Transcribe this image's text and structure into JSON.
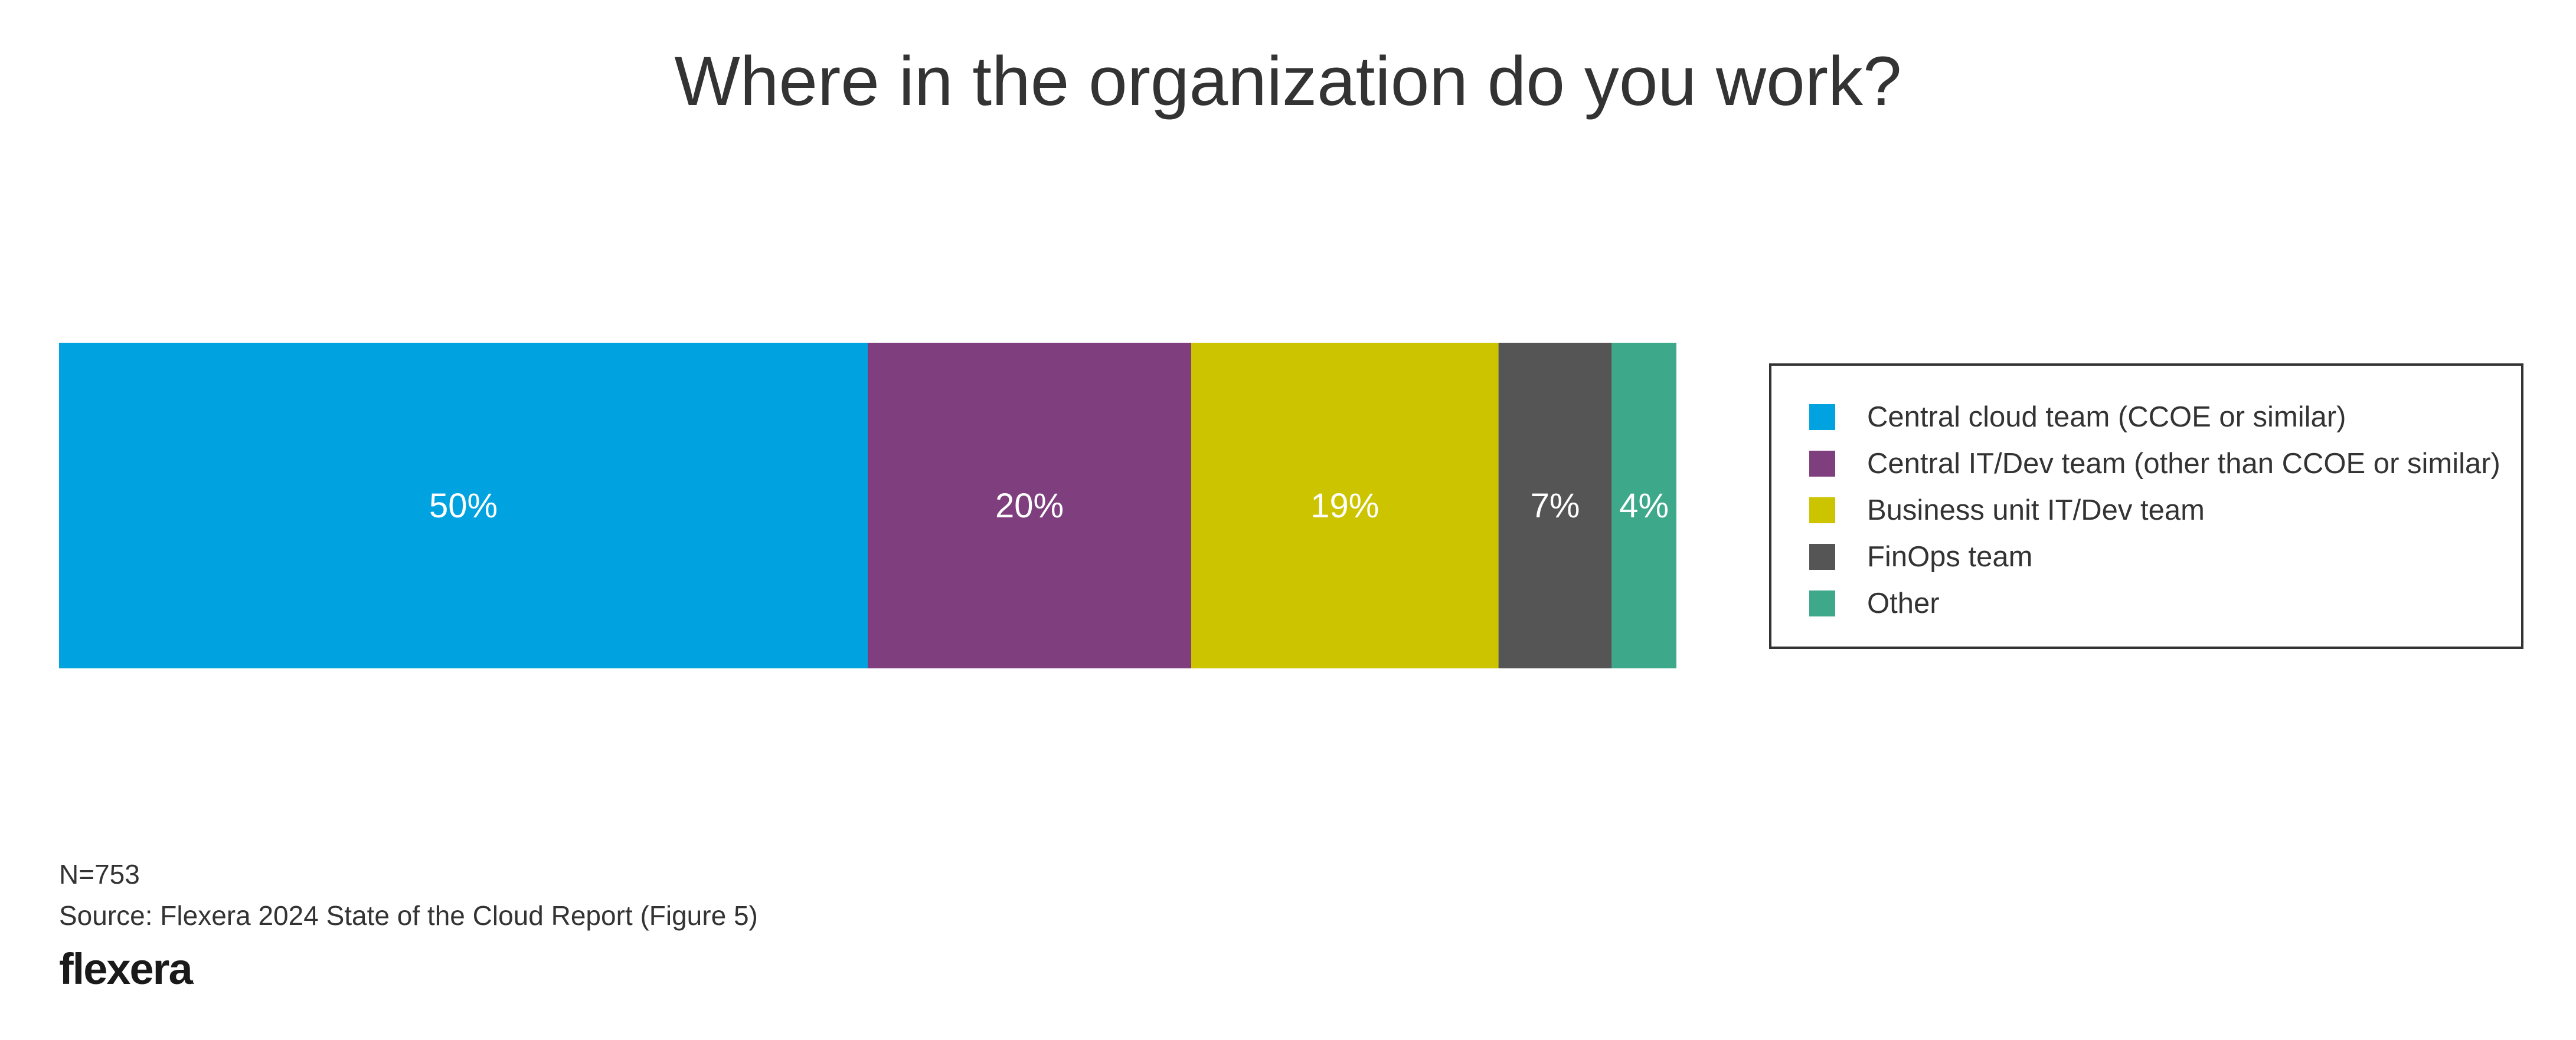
{
  "chart_data": {
    "type": "bar",
    "orientation": "horizontal-stacked-100",
    "title": "Where in the organization do you work?",
    "series": [
      {
        "name": "Central cloud team (CCOE or similar)",
        "value": 50,
        "label": "50%",
        "color": "#00A3E0"
      },
      {
        "name": "Central IT/Dev team (other than CCOE or similar)",
        "value": 20,
        "label": "20%",
        "color": "#7F3F7F"
      },
      {
        "name": "Business unit IT/Dev team",
        "value": 19,
        "label": "19%",
        "color": "#CDC400"
      },
      {
        "name": "FinOps team",
        "value": 7,
        "label": "7%",
        "color": "#555555"
      },
      {
        "name": "Other",
        "value": 4,
        "label": "4%",
        "color": "#3DA88A"
      }
    ],
    "legend_position": "right",
    "grid": false
  },
  "footnotes": {
    "n": "N=753",
    "source": "Source: Flexera 2024 State of the Cloud Report (Figure 5)"
  },
  "logo": {
    "text": "flexera"
  }
}
